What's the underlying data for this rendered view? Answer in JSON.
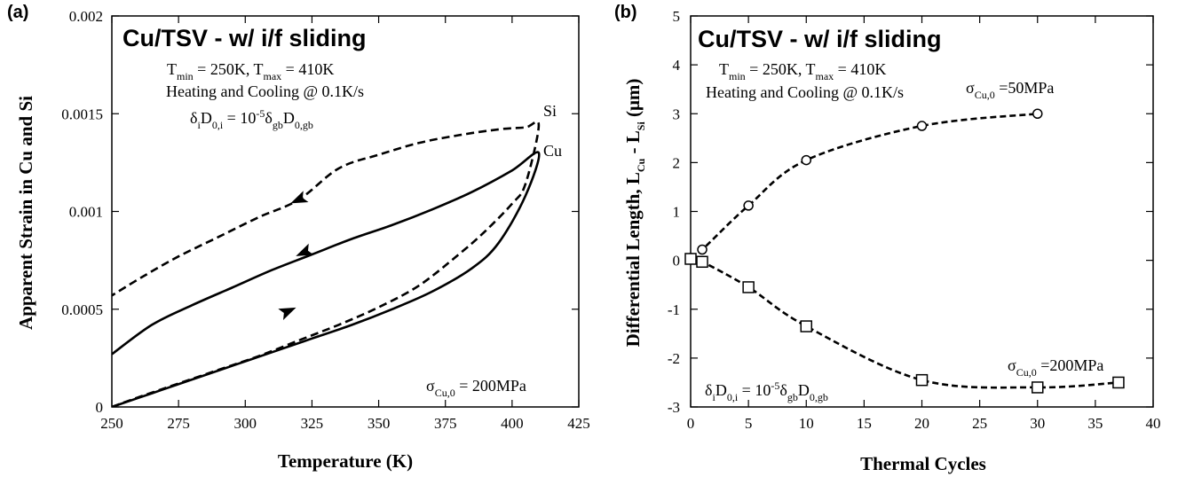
{
  "chart_data": [
    {
      "type": "line",
      "panel_label": "(a)",
      "title": "Cu/TSV - w/ i/f sliding",
      "xlabel": "Temperature (K)",
      "ylabel": "Apparent Strain in Cu and Si",
      "xlim": [
        250,
        425
      ],
      "ylim": [
        0,
        0.002
      ],
      "x_ticks": [
        "250",
        "275",
        "300",
        "325",
        "350",
        "375",
        "400",
        "425"
      ],
      "y_ticks": [
        "0",
        "0.0005",
        "0.001",
        "0.0015",
        "0.002"
      ],
      "annotations": {
        "line1": {
          "a": "T",
          "a_sub": "min",
          "b": " = 250K, T",
          "b_sub": "max",
          "c": " = 410K"
        },
        "line2": "Heating and Cooling @ 0.1K/s",
        "line3": {
          "a": "δ",
          "a_sub": "i",
          "b": "D",
          "b_sub": "0,i",
          "c": " = 10",
          "c_sup": "-5",
          "d": "δ",
          "d_sub": "gb",
          "e": "D",
          "e_sub": "0,gb"
        },
        "stress": {
          "a": "σ",
          "a_sub": "Cu,0",
          "b": " = 200MPa"
        }
      },
      "series": [
        {
          "name": "Si",
          "style": "dashed",
          "x": [
            250,
            260,
            275,
            290,
            305,
            320,
            335,
            350,
            365,
            380,
            390,
            400,
            405,
            410,
            405,
            395,
            380,
            365,
            350,
            335,
            320,
            305,
            290,
            275,
            262,
            250
          ],
          "y": [
            0.0,
            5e-05,
            0.00012,
            0.00019,
            0.00026,
            0.00034,
            0.00042,
            0.00051,
            0.00062,
            0.00078,
            0.0009,
            0.00104,
            0.00114,
            0.00144,
            0.00143,
            0.00142,
            0.00139,
            0.00135,
            0.00129,
            0.00122,
            0.00106,
            0.00097,
            0.00087,
            0.00077,
            0.00067,
            0.00057
          ]
        },
        {
          "name": "Cu",
          "style": "solid",
          "x": [
            250,
            265,
            280,
            295,
            310,
            325,
            340,
            355,
            370,
            385,
            395,
            405,
            410,
            400,
            385,
            370,
            355,
            340,
            325,
            310,
            295,
            280,
            265,
            250
          ],
          "y": [
            0.0,
            7e-05,
            0.00014,
            0.00021,
            0.00028,
            0.00035,
            0.00042,
            0.0005,
            0.00059,
            0.00071,
            0.00084,
            0.00108,
            0.0013,
            0.00121,
            0.0011,
            0.00101,
            0.00093,
            0.00086,
            0.00078,
            0.0007,
            0.00061,
            0.00052,
            0.00042,
            0.00027
          ]
        }
      ],
      "end_labels": [
        "Si",
        "Cu"
      ],
      "arrows": [
        {
          "series": "Si",
          "x": 320,
          "y": 0.00106,
          "dir": "left"
        },
        {
          "series": "Cu",
          "x": 322,
          "y": 0.00079,
          "dir": "left"
        },
        {
          "series": "Cu",
          "x": 316,
          "y": 0.00049,
          "dir": "right"
        }
      ]
    },
    {
      "type": "scatter",
      "panel_label": "(b)",
      "title": "Cu/TSV - w/ i/f sliding",
      "xlabel": "Thermal Cycles",
      "ylabel": {
        "a": "Differential Length, L",
        "a_sub": "Cu",
        "b": " - L",
        "b_sub": "Si",
        "c": " (μm)"
      },
      "xlim": [
        0,
        40
      ],
      "ylim": [
        -3,
        5
      ],
      "x_ticks": [
        "0",
        "5",
        "10",
        "15",
        "20",
        "25",
        "30",
        "35",
        "40"
      ],
      "y_ticks": [
        "-3",
        "-2",
        "-1",
        "0",
        "1",
        "2",
        "3",
        "4",
        "5"
      ],
      "annotations": {
        "line1": {
          "a": "T",
          "a_sub": "min",
          "b": " = 250K, T",
          "b_sub": "max",
          "c": " = 410K"
        },
        "line2": "Heating and Cooling @ 0.1K/s",
        "diffusion": {
          "a": "δ",
          "a_sub": "i",
          "b": "D",
          "b_sub": "0,i",
          "c": " = 10",
          "c_sup": "-5",
          "d": "δ",
          "d_sub": "gb",
          "e": "D",
          "e_sub": "0,gb"
        }
      },
      "series": [
        {
          "label": {
            "a": "σ",
            "a_sub": "Cu,0",
            "b": " =50MPa"
          },
          "marker": "circle",
          "x": [
            0,
            1,
            5,
            10,
            20,
            30
          ],
          "y": [
            0.05,
            0.22,
            1.12,
            2.05,
            2.75,
            3.0
          ]
        },
        {
          "label": {
            "a": "σ",
            "a_sub": "Cu,0",
            "b": " =200MPa"
          },
          "marker": "square",
          "x": [
            0,
            1,
            5,
            10,
            20,
            30,
            37
          ],
          "y": [
            0.03,
            -0.03,
            -0.55,
            -1.35,
            -2.45,
            -2.6,
            -2.5
          ]
        }
      ]
    }
  ]
}
